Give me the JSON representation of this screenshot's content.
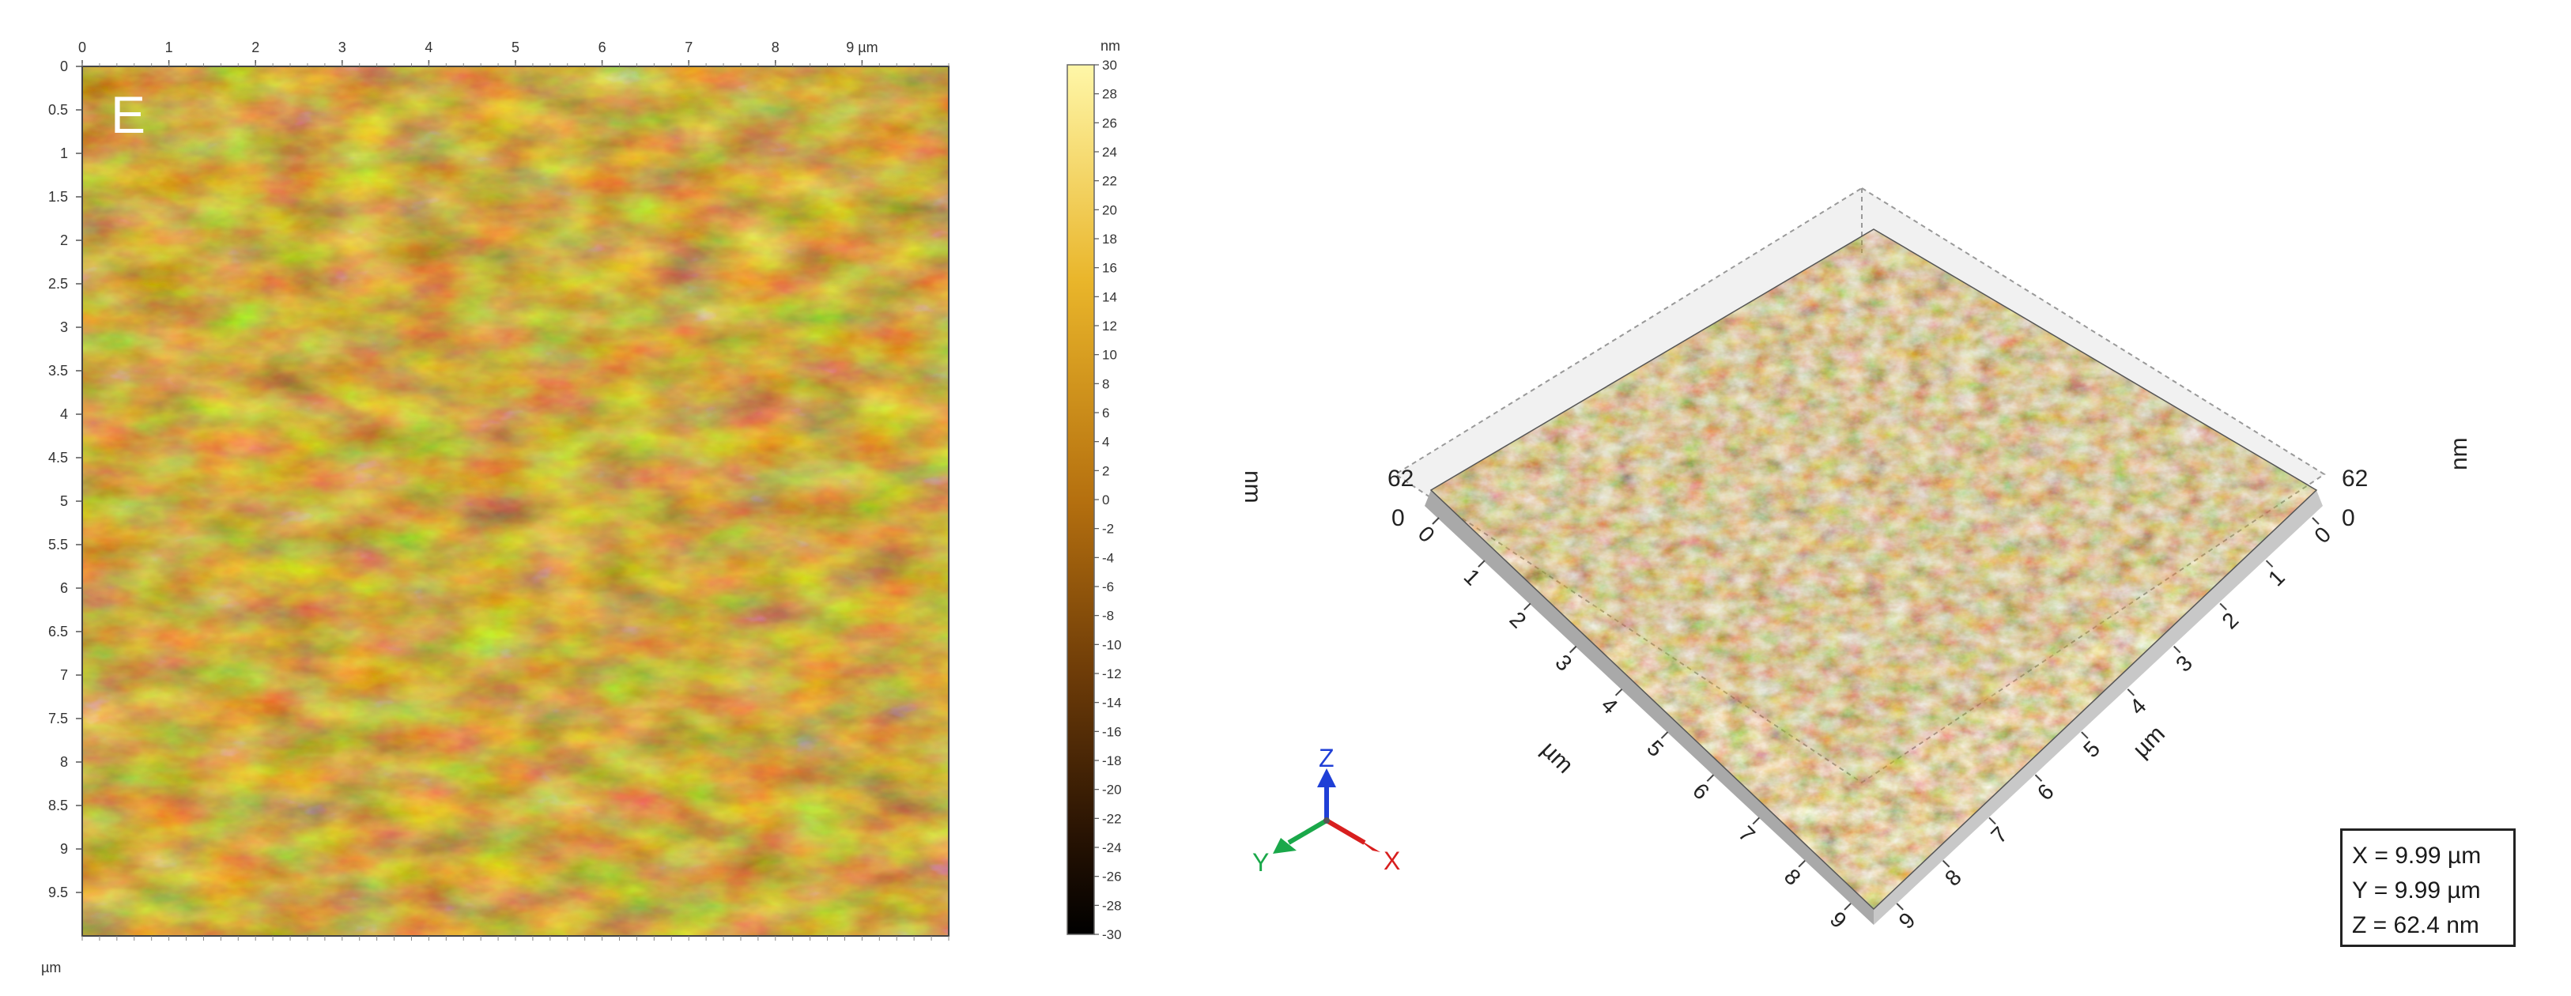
{
  "panel_2d": {
    "label": "E",
    "x_ticks": [
      "0",
      "1",
      "2",
      "3",
      "4",
      "5",
      "6",
      "7",
      "8",
      "9 µm"
    ],
    "y_ticks": [
      "0",
      "0.5",
      "1",
      "1.5",
      "2",
      "2.5",
      "3",
      "3.5",
      "4",
      "4.5",
      "5",
      "5.5",
      "6",
      "6.5",
      "7",
      "7.5",
      "8",
      "8.5",
      "9",
      "9.5"
    ],
    "corner_unit": "µm"
  },
  "colorbar": {
    "unit": "nm",
    "ticks": [
      "30",
      "28",
      "26",
      "24",
      "22",
      "20",
      "18",
      "16",
      "14",
      "12",
      "10",
      "8",
      "6",
      "4",
      "2",
      "0",
      "-2",
      "-4",
      "-6",
      "-8",
      "-10",
      "-12",
      "-14",
      "-16",
      "-18",
      "-20",
      "-22",
      "-24",
      "-26",
      "-28",
      "-30"
    ],
    "colors": [
      "#fff7a8",
      "#e9b52a",
      "#b5700f",
      "#6e3c08",
      "#2a1403",
      "#000000"
    ]
  },
  "panel_3d": {
    "z_label_left": "nm",
    "z_label_right": "nm",
    "z_max_left": "62",
    "z_max_right": "62",
    "z_min_left": "0",
    "z_min_right": "0",
    "axis_ticks_left": [
      "0",
      "1",
      "2",
      "3",
      "4",
      "5",
      "6",
      "7",
      "8",
      "9"
    ],
    "axis_ticks_right": [
      "0",
      "1",
      "2",
      "3",
      "4",
      "5",
      "6",
      "7",
      "8",
      "9"
    ],
    "axis_unit_left": "µm",
    "axis_unit_right": "µm"
  },
  "axis_gizmo": {
    "z": "Z",
    "y": "Y",
    "x": "X",
    "z_color": "#1f3fd6",
    "y_color": "#1aa84a",
    "x_color": "#d81f1f"
  },
  "dimensions": {
    "x": "X = 9.99 µm",
    "y": "Y = 9.99 µm",
    "z": "Z = 62.4 nm"
  }
}
